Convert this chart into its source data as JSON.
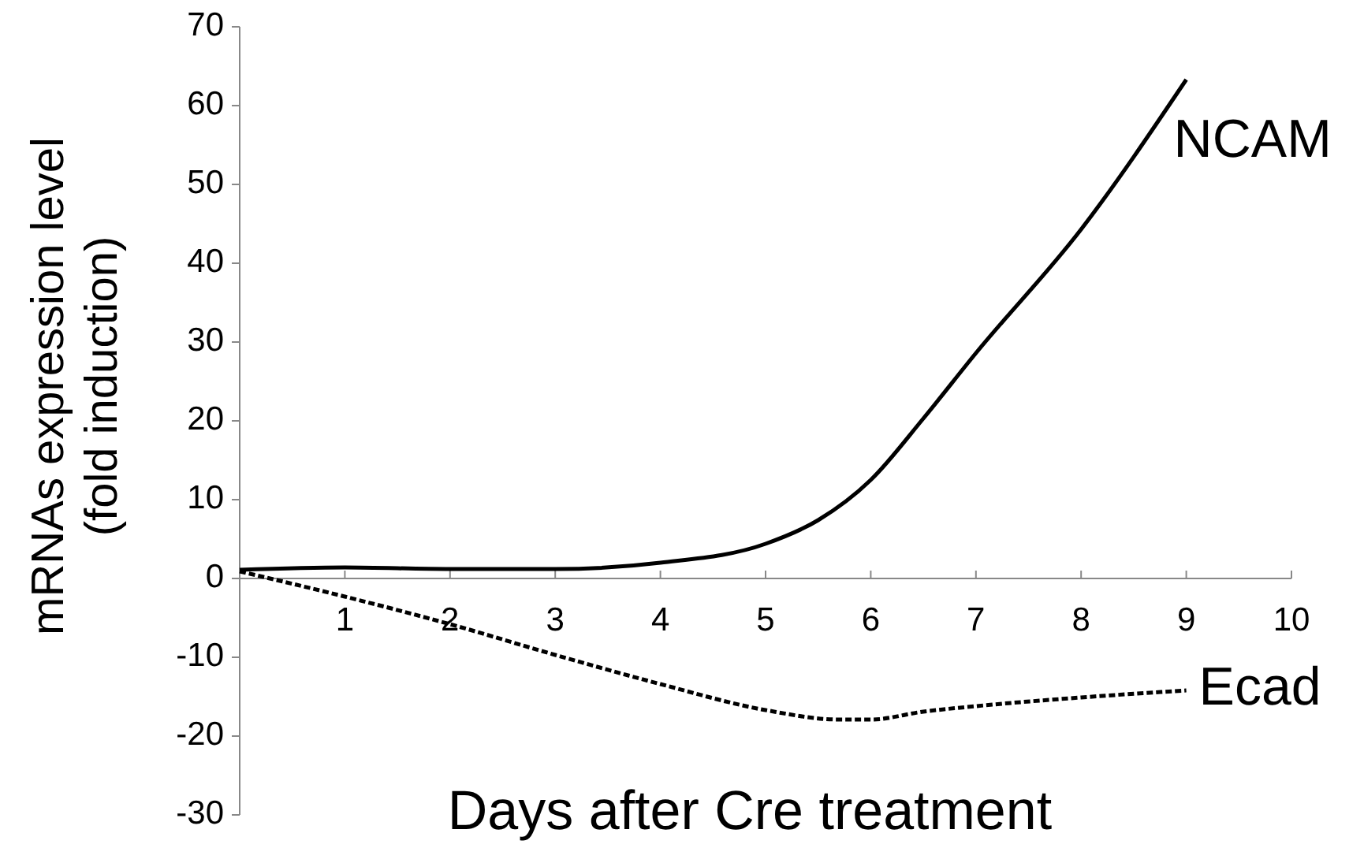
{
  "chart_data": {
    "type": "line",
    "xlabel": "Days after Cre treatment",
    "ylabel": "mRNAs expression level\n(fold induction)",
    "xlim": [
      0,
      10
    ],
    "ylim": [
      -30,
      70
    ],
    "xticks": [
      1,
      2,
      3,
      4,
      5,
      6,
      7,
      8,
      9,
      10
    ],
    "yticks": [
      -30,
      -20,
      -10,
      0,
      10,
      20,
      30,
      40,
      50,
      60,
      70
    ],
    "grid": false,
    "marker": "none",
    "series": [
      {
        "name": "NCAM",
        "color": "#000000",
        "line_style": "solid",
        "x": [
          0,
          1,
          2,
          3,
          4,
          5,
          5.5,
          6,
          6.5,
          7,
          8,
          9
        ],
        "values": [
          1.1,
          1.4,
          1.2,
          1.2,
          2.0,
          4.4,
          7.4,
          12.5,
          20.3,
          28.6,
          44.3,
          63.3
        ]
      },
      {
        "name": "Ecad",
        "color": "#000000",
        "line_style": "dashed",
        "x": [
          0,
          1,
          2,
          3,
          4,
          5,
          5.7,
          6,
          6.5,
          7,
          8,
          9
        ],
        "values": [
          0.9,
          -2.3,
          -5.8,
          -9.7,
          -13.4,
          -16.7,
          -17.9,
          -17.9,
          -16.9,
          -16.2,
          -15.1,
          -14.2
        ]
      }
    ]
  }
}
